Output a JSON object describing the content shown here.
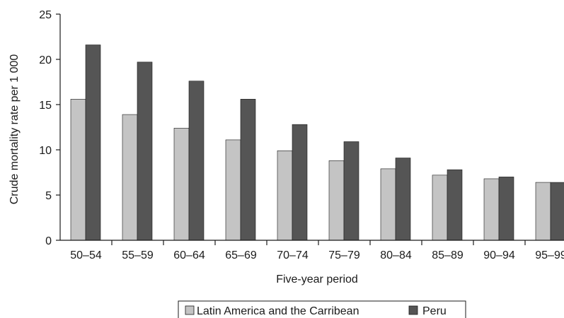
{
  "chart_data": {
    "type": "bar",
    "title": "",
    "xlabel": "Five-year period",
    "ylabel": "Crude mortality rate per 1 000",
    "ylim": [
      0,
      25
    ],
    "yticks": [
      "0",
      "5",
      "10",
      "15",
      "20",
      "25"
    ],
    "categories": [
      "50–54",
      "55–59",
      "60–64",
      "65–69",
      "70–74",
      "75–79",
      "80–84",
      "85–89",
      "90–94",
      "95–99"
    ],
    "series": [
      {
        "name": "Latin America and the Carribean",
        "color": "#c4c4c4",
        "values": [
          15.6,
          13.9,
          12.4,
          11.1,
          9.9,
          8.8,
          7.9,
          7.2,
          6.8,
          6.4
        ]
      },
      {
        "name": "Peru",
        "color": "#555555",
        "values": [
          21.6,
          19.7,
          17.6,
          15.6,
          12.8,
          10.9,
          9.1,
          7.8,
          7.0,
          6.4
        ]
      }
    ],
    "legend_position": "bottom",
    "grid": false
  }
}
